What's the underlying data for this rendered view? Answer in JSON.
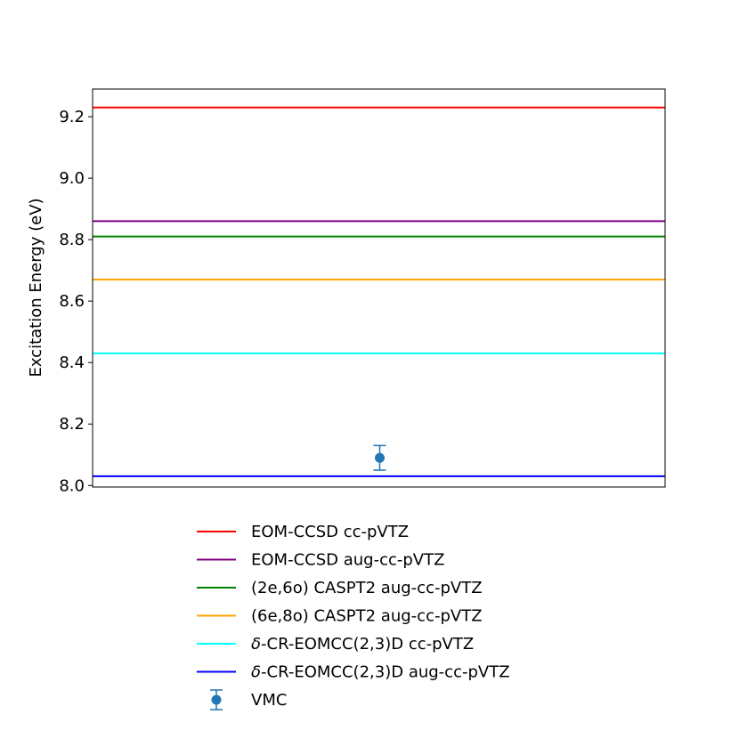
{
  "chart_data": {
    "type": "line",
    "title": "",
    "xlabel": "",
    "ylabel": "Excitation Energy (eV)",
    "ylim": [
      7.995,
      9.29
    ],
    "yticks": [
      "8.0",
      "8.2",
      "8.4",
      "8.6",
      "8.8",
      "9.0",
      "9.2"
    ],
    "grid": false,
    "legend_position": "below plot",
    "hlines": [
      {
        "name": "EOM-CCSD cc-pVTZ",
        "prefix": "",
        "label": "EOM-CCSD cc-pVTZ",
        "value": 9.23,
        "color": "#ff0000"
      },
      {
        "name": "EOM-CCSD aug-cc-pVTZ",
        "prefix": "",
        "label": "EOM-CCSD aug-cc-pVTZ",
        "value": 8.86,
        "color": "#800080"
      },
      {
        "name": "(2e,6o) CASPT2 aug-cc-pVTZ",
        "prefix": "",
        "label": "(2e,6o) CASPT2 aug-cc-pVTZ",
        "value": 8.81,
        "color": "#008000"
      },
      {
        "name": "(6e,8o) CASPT2 aug-cc-pVTZ",
        "prefix": "",
        "label": "(6e,8o) CASPT2 aug-cc-pVTZ",
        "value": 8.67,
        "color": "#ffa500"
      },
      {
        "name": "δ-CR-EOMCC(2,3)D cc-pVTZ",
        "prefix": "δ",
        "label": "-CR-EOMCC(2,3)D cc-pVTZ",
        "value": 8.43,
        "color": "#00ffff"
      },
      {
        "name": "δ-CR-EOMCC(2,3)D aug-cc-pVTZ",
        "prefix": "δ",
        "label": "-CR-EOMCC(2,3)D aug-cc-pVTZ",
        "value": 8.03,
        "color": "#0000ff"
      }
    ],
    "points": [
      {
        "name": "VMC",
        "value": 8.09,
        "error": 0.04,
        "color": "#1f77b4"
      }
    ]
  }
}
